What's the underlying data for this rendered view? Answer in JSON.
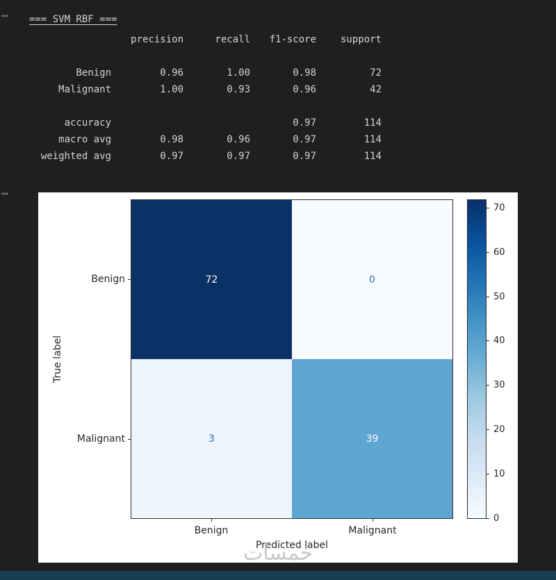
{
  "page": {
    "background": "#1f1f1f",
    "bottom_bar_color": "#164050"
  },
  "output": {
    "ellipsis_top": "⋯",
    "ellipsis_mid": "⋯",
    "title": "=== SVM_RBF ===",
    "report": {
      "col_headers": [
        "precision",
        "recall",
        "f1-score",
        "support"
      ],
      "rows": [
        {
          "label": "Benign",
          "values": [
            "0.96",
            "1.00",
            "0.98",
            "72"
          ]
        },
        {
          "label": "Malignant",
          "values": [
            "1.00",
            "0.93",
            "0.96",
            "42"
          ]
        },
        {
          "label": "accuracy",
          "values": [
            "",
            "",
            "0.97",
            "114"
          ]
        },
        {
          "label": "macro avg",
          "values": [
            "0.98",
            "0.96",
            "0.97",
            "114"
          ]
        },
        {
          "label": "weighted avg",
          "values": [
            "0.97",
            "0.97",
            "0.97",
            "114"
          ]
        }
      ]
    }
  },
  "chart_data": {
    "type": "heatmap",
    "title": "",
    "xlabel": "Predicted label",
    "ylabel": "True label",
    "x_categories": [
      "Benign",
      "Malignant"
    ],
    "y_categories": [
      "Benign",
      "Malignant"
    ],
    "matrix": [
      [
        72,
        0
      ],
      [
        3,
        39
      ]
    ],
    "cells": [
      {
        "true_label": "Benign",
        "predicted_label": "Benign",
        "value": 72,
        "bg": "#0b3266",
        "text_color": "#ffffff"
      },
      {
        "true_label": "Benign",
        "predicted_label": "Malignant",
        "value": 0,
        "bg": "#f7fbff",
        "text_color": "#2e6da4"
      },
      {
        "true_label": "Malignant",
        "predicted_label": "Benign",
        "value": 3,
        "bg": "#eef5fc",
        "text_color": "#2e6da4"
      },
      {
        "true_label": "Malignant",
        "predicted_label": "Malignant",
        "value": 39,
        "bg": "#5ea5d1",
        "text_color": "#ffffff"
      }
    ],
    "colorbar": {
      "ticks": [
        "0",
        "10",
        "20",
        "30",
        "40",
        "50",
        "60",
        "70"
      ],
      "vmin": 0,
      "vmax": 72,
      "colormap": "Blues",
      "position": "right"
    },
    "grid": false,
    "legend_position": "none"
  },
  "watermark": {
    "text": "خمسات",
    "color": "#bfbfbf"
  }
}
